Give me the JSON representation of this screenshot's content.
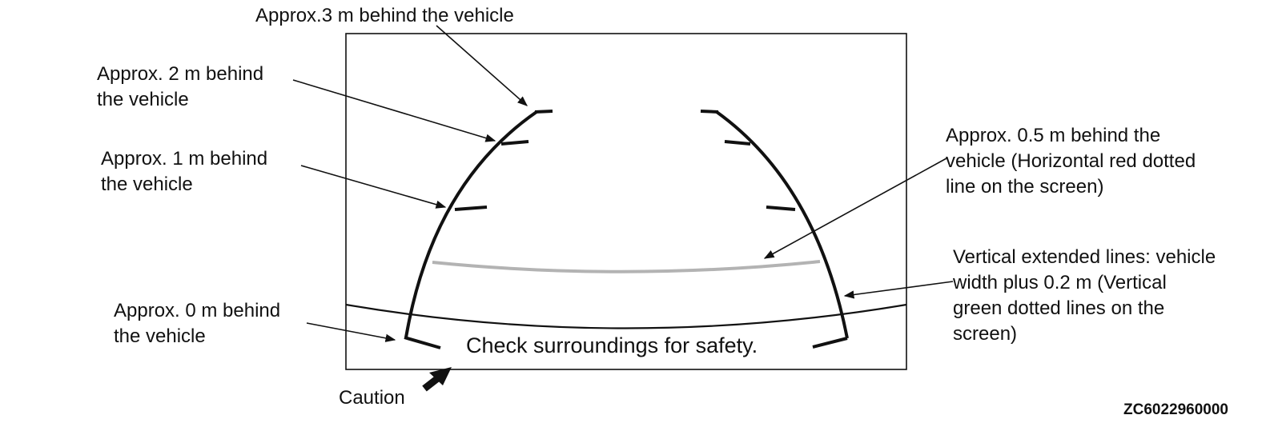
{
  "labels": {
    "approx_3m": "Approx.3 m behind the vehicle",
    "approx_2m": [
      "Approx. 2 m behind",
      "the vehicle"
    ],
    "approx_1m": [
      "Approx. 1 m behind",
      "the vehicle"
    ],
    "approx_0m": [
      "Approx. 0 m behind",
      "the vehicle"
    ],
    "approx_05m": [
      "Approx. 0.5 m behind the",
      "vehicle (Horizontal red dotted",
      "line on the screen)"
    ],
    "vertical_lines": [
      "Vertical extended lines: vehicle",
      "width plus 0.2 m (Vertical",
      "green dotted lines on the",
      "screen)"
    ],
    "caution": "Caution"
  },
  "screen": {
    "message": "Check surroundings for safety."
  },
  "figure_code": "ZC6022960000",
  "colors": {
    "line": "#111111",
    "guide_gray": "#b3b3b3",
    "background": "#ffffff"
  }
}
